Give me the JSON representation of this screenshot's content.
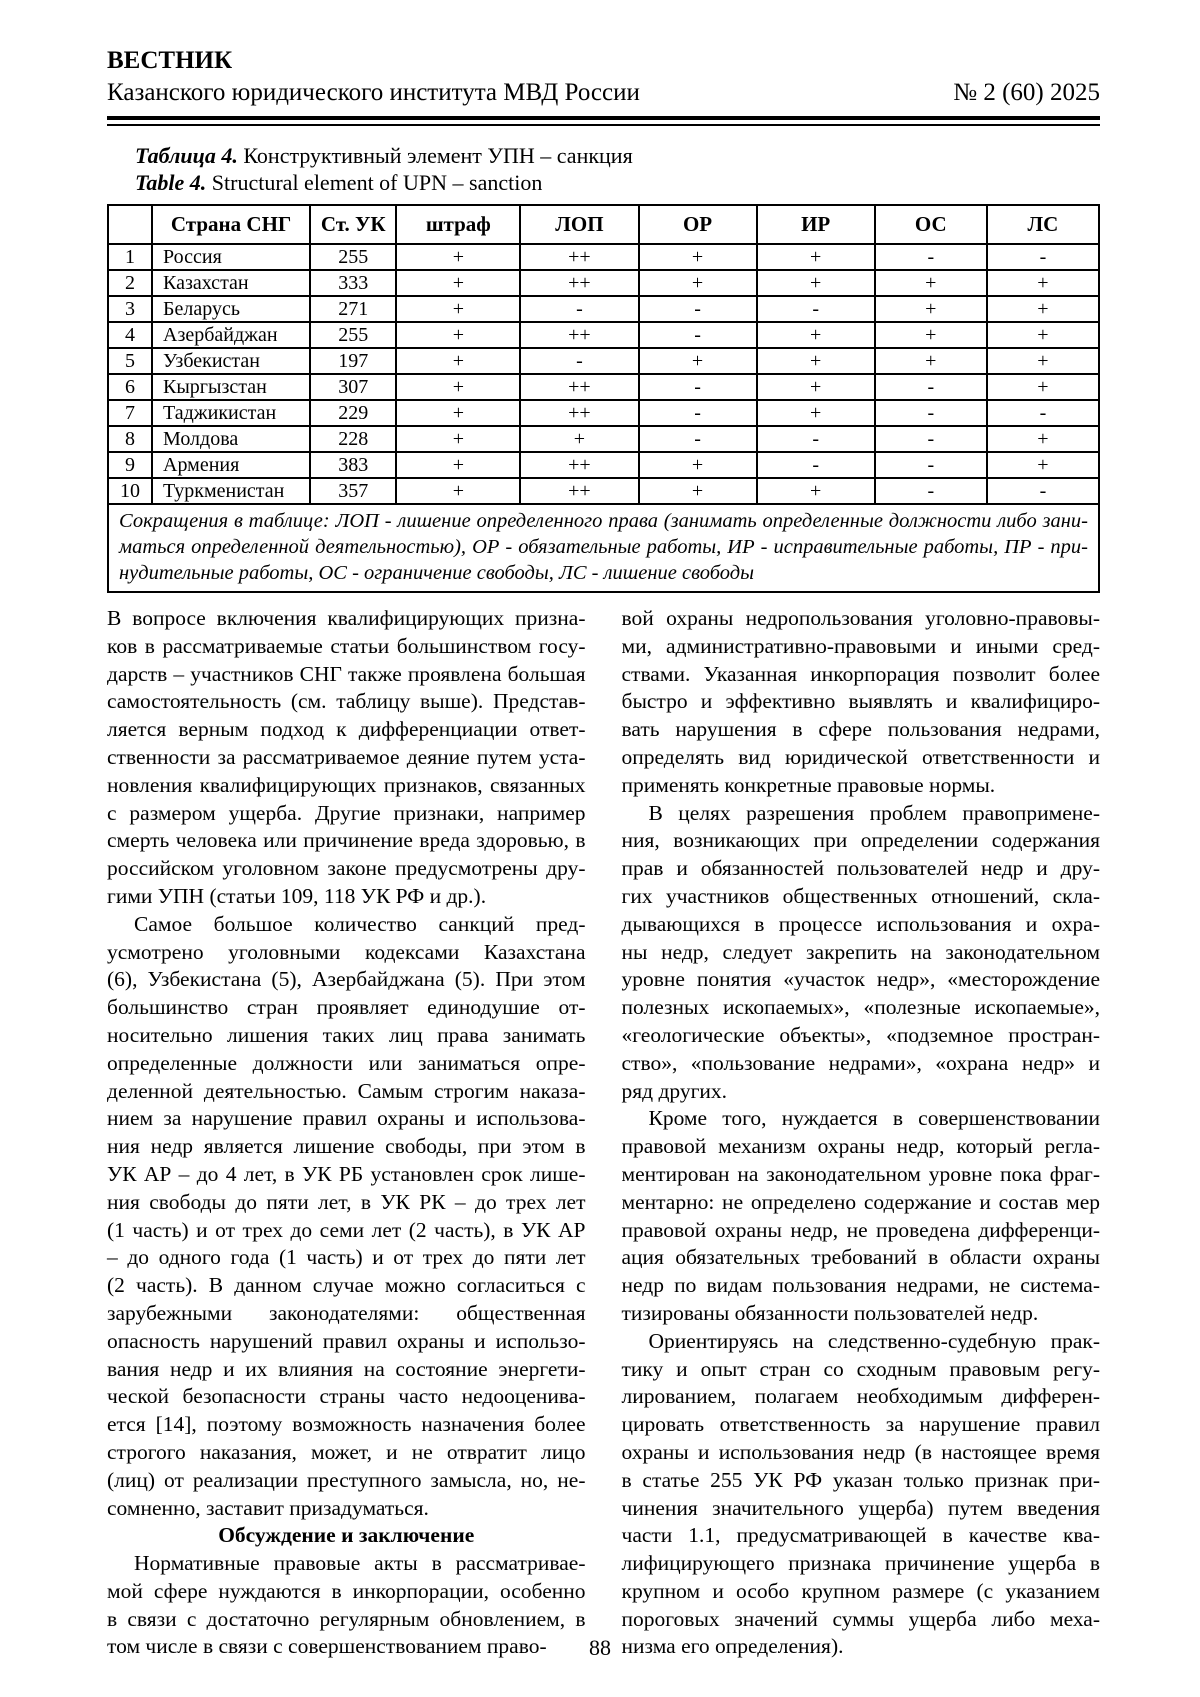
{
  "header": {
    "journal_name": "ВЕСТНИК",
    "journal_subtitle": "Казанского юридического института МВД России",
    "issue": "№ 2 (60) 2025"
  },
  "table_caption": {
    "label_ru": "Таблица 4.",
    "title_ru": "Конструктивный элемент УПН – санкция",
    "label_en": "Table 4.",
    "title_en": "Structural element of UPN – sanction"
  },
  "table": {
    "columns": [
      "",
      "Страна СНГ",
      "Ст. УК",
      "штраф",
      "ЛОП",
      "ОР",
      "ИР",
      "ОС",
      "ЛС"
    ],
    "rows": [
      [
        "1",
        "Россия",
        "255",
        "+",
        "++",
        "+",
        "+",
        "-",
        "-"
      ],
      [
        "2",
        "Казахстан",
        "333",
        "+",
        "++",
        "+",
        "+",
        "+",
        "+"
      ],
      [
        "3",
        "Беларусь",
        "271",
        "+",
        "-",
        "-",
        "-",
        "+",
        "+"
      ],
      [
        "4",
        "Азербайджан",
        "255",
        "+",
        "++",
        "-",
        "+",
        "+",
        "+"
      ],
      [
        "5",
        "Узбекистан",
        "197",
        "+",
        "-",
        "+",
        "+",
        "+",
        "+"
      ],
      [
        "6",
        "Кыргызстан",
        "307",
        "+",
        "++",
        "-",
        "+",
        "-",
        "+"
      ],
      [
        "7",
        "Таджикистан",
        "229",
        "+",
        "++",
        "-",
        "+",
        "-",
        "-"
      ],
      [
        "8",
        "Молдова",
        "228",
        "+",
        "+",
        "-",
        "-",
        "-",
        "+"
      ],
      [
        "9",
        "Армения",
        "383",
        "+",
        "++",
        "+",
        "-",
        "-",
        "+"
      ],
      [
        "10",
        "Туркменистан",
        "357",
        "+",
        "++",
        "+",
        "+",
        "-",
        "-"
      ]
    ],
    "note_lines": [
      "Сокращения в таблице: ЛОП - лишение определенного права (занимать определенные должности либо зани-",
      "маться определенной деятельностью), ОР - обязательные работы, ИР - исправительные работы, ПР - при-",
      "нудительные работы, ОС - ограничение свободы, ЛС - лишение свободы"
    ]
  },
  "body": {
    "left_column": [
      {
        "type": "p",
        "indent": false,
        "lines": [
          "В вопросе включения квалифицирующих призна-",
          "ков в рассматриваемые статьи большинством госу-",
          "дарств – участников СНГ также проявлена большая",
          "самостоятельность (см. таблицу выше). Представ-",
          "ляется верным подход к дифференциации ответ-",
          "ственности за рассматриваемое деяние путем уста-",
          "новления квалифицирующих признаков, связанных",
          "с размером ущерба. Другие признаки, например",
          "смерть человека или причинение вреда здоровью, в",
          "российском уголовном законе предусмотрены дру-",
          "гими УПН (статьи 109, 118 УК РФ и др.)."
        ]
      },
      {
        "type": "p",
        "indent": true,
        "lines": [
          "Самое большое количество санкций пред-",
          "усмотрено уголовными кодексами Казахстана",
          "(6), Узбекистана (5), Азербайджана (5). При этом",
          "большинство стран проявляет единодушие от-",
          "носительно лишения таких лиц права занимать",
          "определенные должности или заниматься опре-",
          "деленной деятельностью. Самым строгим наказа-",
          "нием за нарушение правил охраны и использова-",
          "ния недр является лишение свободы, при этом в",
          "УК АР – до 4 лет, в УК РБ установлен срок лише-",
          "ния свободы до пяти лет, в УК РК – до трех лет",
          "(1 часть) и от трех до семи лет (2 часть), в УК АР",
          "– до одного года (1 часть) и от трех до пяти лет",
          "(2 часть). В данном случае можно согласиться с",
          "зарубежными законодателями: общественная",
          "опасность нарушений правил охраны и использо-",
          "вания недр и их влияния на состояние энергети-",
          "ческой безопасности страны часто недооценива-",
          "ется [14], поэтому возможность назначения более",
          "строгого наказания, может, и не отвратит лицо",
          "(лиц) от реализации преступного замысла, но, не-",
          "сомненно, заставит призадуматься."
        ]
      },
      {
        "type": "h",
        "text": "Обсуждение и заключение"
      },
      {
        "type": "p",
        "indent": true,
        "lines": [
          "Нормативные правовые акты в рассматривае-",
          "мой сфере нуждаются в инкорпорации, особенно",
          "в связи с достаточно регулярным обновлением, в",
          "том числе в связи с совершенствованием право-"
        ]
      }
    ],
    "right_column": [
      {
        "type": "p",
        "indent": false,
        "lines": [
          "вой охраны недропользования уголовно-правовы-",
          "ми, административно-правовыми и иными сред-",
          "ствами. Указанная инкорпорация позволит более",
          "быстро и эффективно выявлять и квалифициро-",
          "вать нарушения в сфере пользования недрами,",
          "определять вид юридической ответственности и",
          "применять конкретные правовые нормы."
        ]
      },
      {
        "type": "p",
        "indent": true,
        "lines": [
          "В целях разрешения проблем правопримене-",
          "ния, возникающих при определении содержания",
          "прав и обязанностей пользователей недр и дру-",
          "гих участников общественных отношений, скла-",
          "дывающихся в процессе использования и охра-",
          "ны недр, следует закрепить на законодательном",
          "уровне понятия «участок недр», «месторождение",
          "полезных ископаемых», «полезные ископаемые»,",
          "«геологические объекты», «подземное простран-",
          "ство», «пользование недрами», «охрана недр» и",
          "ряд других."
        ]
      },
      {
        "type": "p",
        "indent": true,
        "lines": [
          "Кроме того, нуждается в совершенствовании",
          "правовой механизм охраны недр, который регла-",
          "ментирован на законодательном уровне пока фраг-",
          "ментарно: не определено содержание и состав мер",
          "правовой охраны недр, не проведена дифференци-",
          "ация обязательных требований в области охраны",
          "недр по видам пользования недрами, не система-",
          "тизированы обязанности пользователей недр."
        ]
      },
      {
        "type": "p",
        "indent": true,
        "lines": [
          "Ориентируясь на следственно-судебную прак-",
          "тику и опыт стран со сходным правовым регу-",
          "лированием, полагаем необходимым дифферен-",
          "цировать ответственность за нарушение правил",
          "охраны и использования недр (в настоящее время",
          "в статье 255 УК РФ указан только признак при-",
          "чинения значительного ущерба) путем введения",
          "части 1.1, предусматривающей в качестве ква-",
          "лифицирующего признака причинение ущерба в",
          "крупном и особо крупном размере (с указанием",
          "пороговых значений суммы ущерба либо меха-",
          "низма его определения)."
        ]
      }
    ]
  },
  "footer": {
    "page_number": "88"
  }
}
